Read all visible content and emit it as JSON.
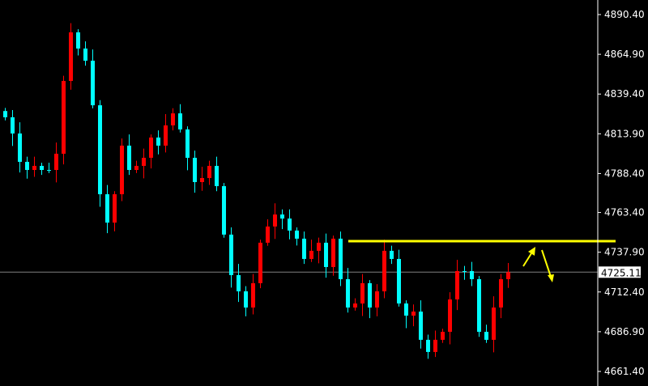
{
  "chart_data": {
    "type": "candlestick",
    "title": "",
    "ylim": [
      4661.4,
      4890.4
    ],
    "y_ticks": [
      "4890.40",
      "4864.90",
      "4839.40",
      "4813.90",
      "4788.40",
      "4763.40",
      "4737.90",
      "4712.40",
      "4686.90",
      "4661.40"
    ],
    "current_price": "4725.11",
    "closes": [
      4824.5,
      4814.1,
      4795.9,
      4790.7,
      4793.3,
      4790.7,
      4790.7,
      4801.1,
      4847.8,
      4879.0,
      4868.6,
      4860.8,
      4832.2,
      4775.1,
      4756.9,
      4775.1,
      4806.3,
      4790.7,
      4793.3,
      4798.5,
      4811.5,
      4806.3,
      4819.3,
      4827.0,
      4816.7,
      4798.5,
      4782.9,
      4785.5,
      4793.3,
      4780.3,
      4749.2,
      4723.2,
      4712.8,
      4702.4,
      4718.0,
      4744.0,
      4754.4,
      4762.1,
      4759.5,
      4751.8,
      4746.6,
      4733.6,
      4738.8,
      4744.0,
      4728.4,
      4746.6,
      4720.6,
      4702.4,
      4705.0,
      4718.0,
      4702.4,
      4712.8,
      4738.8,
      4733.6,
      4705.0,
      4697.2,
      4699.8,
      4681.7,
      4673.9,
      4681.7,
      4686.8,
      4707.6,
      4725.8,
      4725.8,
      4720.6,
      4686.8,
      4681.7,
      4702.4,
      4720.6,
      4725.1
    ],
    "horizontal_line": {
      "price": 4745.0,
      "color": "#ffff00"
    },
    "colors": {
      "bull": "#ff0000",
      "bear": "#00ffff",
      "background": "#000000",
      "axis": "#ffffff",
      "price_line": "#808080",
      "annotation": "#ffff00"
    },
    "annotations": [
      "arrow-up-yellow",
      "arrow-down-yellow"
    ],
    "grid": false
  }
}
